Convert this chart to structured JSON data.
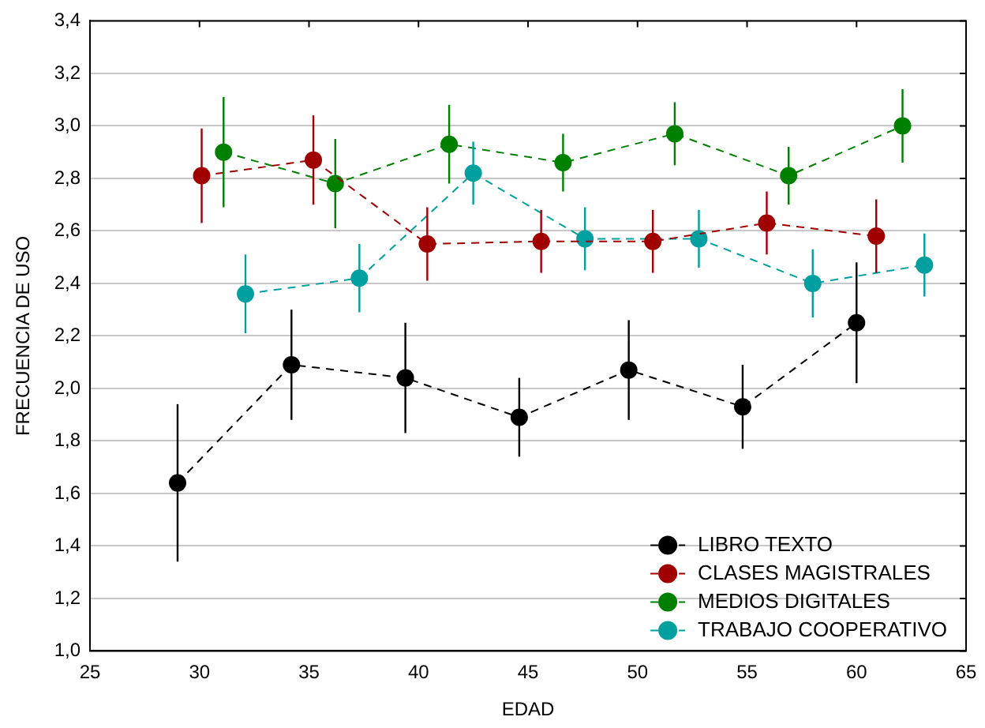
{
  "chart_data": {
    "type": "line",
    "xlabel": "EDAD",
    "ylabel": "FRECUENCIA DE USO",
    "xlim": [
      25,
      65
    ],
    "xticks": [
      25,
      30,
      35,
      40,
      45,
      50,
      55,
      60,
      65
    ],
    "ylim": [
      1.0,
      3.4
    ],
    "yticks": [
      {
        "value": 1.0,
        "label": "1,0"
      },
      {
        "value": 1.2,
        "label": "1,2"
      },
      {
        "value": 1.4,
        "label": "1,4"
      },
      {
        "value": 1.6,
        "label": "1,6"
      },
      {
        "value": 1.8,
        "label": "1,8"
      },
      {
        "value": 2.0,
        "label": "2,0"
      },
      {
        "value": 2.2,
        "label": "2,2"
      },
      {
        "value": 2.4,
        "label": "2,4"
      },
      {
        "value": 2.6,
        "label": "2,6"
      },
      {
        "value": 2.8,
        "label": "2,8"
      },
      {
        "value": 3.0,
        "label": "3,0"
      },
      {
        "value": 3.2,
        "label": "3,2"
      },
      {
        "value": 3.4,
        "label": "3,4"
      }
    ],
    "grid": "y",
    "legend": "bottom right",
    "marker": "circle",
    "line_style": "dashed",
    "series": [
      {
        "name": "LIBRO TEXTO",
        "color": "#000000",
        "x": [
          29.0,
          34.2,
          39.4,
          44.6,
          49.6,
          54.8,
          60.0
        ],
        "values": [
          1.64,
          2.09,
          2.04,
          1.89,
          2.07,
          1.93,
          2.25
        ],
        "errors": [
          0.3,
          0.21,
          0.21,
          0.15,
          0.19,
          0.16,
          0.23
        ]
      },
      {
        "name": "CLASES MAGISTRALES",
        "color": "#a00000",
        "x": [
          30.1,
          35.2,
          40.4,
          45.6,
          50.7,
          55.9,
          60.9
        ],
        "values": [
          2.81,
          2.87,
          2.55,
          2.56,
          2.56,
          2.63,
          2.58
        ],
        "errors": [
          0.18,
          0.17,
          0.14,
          0.12,
          0.12,
          0.12,
          0.14
        ]
      },
      {
        "name": "MEDIOS DIGITALES",
        "color": "#008000",
        "x": [
          31.1,
          36.2,
          41.4,
          46.6,
          51.7,
          56.9,
          62.1
        ],
        "values": [
          2.9,
          2.78,
          2.93,
          2.86,
          2.97,
          2.81,
          3.0
        ],
        "errors": [
          0.21,
          0.17,
          0.15,
          0.11,
          0.12,
          0.11,
          0.14
        ]
      },
      {
        "name": "TRABAJO COOPERATIVO",
        "color": "#00a0a0",
        "x": [
          32.1,
          37.3,
          42.5,
          47.6,
          52.8,
          58.0,
          63.1
        ],
        "values": [
          2.36,
          2.42,
          2.82,
          2.57,
          2.57,
          2.4,
          2.47
        ],
        "errors": [
          0.15,
          0.13,
          0.12,
          0.12,
          0.11,
          0.13,
          0.12
        ]
      }
    ]
  }
}
